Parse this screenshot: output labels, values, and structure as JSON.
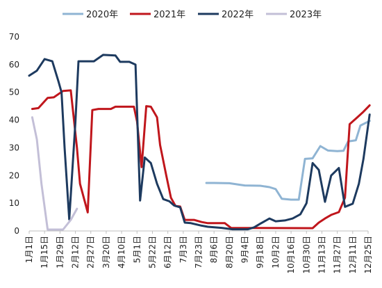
{
  "chart_data": {
    "type": "line",
    "title": "",
    "xlabel": "",
    "ylabel": "",
    "ylim": [
      0,
      70
    ],
    "yticks": [
      0,
      10,
      20,
      30,
      40,
      50,
      60,
      70
    ],
    "grid": false,
    "legend_position": "top",
    "x_tick_labels": [
      "1月1日",
      "1月15日",
      "1月29日",
      "2月12日",
      "2月27日",
      "3月20日",
      "4月10日",
      "5月1日",
      "5月22日",
      "6月12日",
      "7月3日",
      "7月23日",
      "8月6日",
      "8月20日",
      "9月4日",
      "9月18日",
      "10月2日",
      "10月16日",
      "10月30日",
      "11月13日",
      "11月27日",
      "12月11日",
      "12月25日"
    ],
    "series": [
      {
        "name": "2020年",
        "color": "#8fb4d3",
        "points": [
          [
            11.5,
            17.3
          ],
          [
            12,
            17.3
          ],
          [
            13,
            17.2
          ],
          [
            13.6,
            16.7
          ],
          [
            14,
            16.4
          ],
          [
            15,
            16.3
          ],
          [
            15.6,
            15.8
          ],
          [
            16,
            15.1
          ],
          [
            16.4,
            11.6
          ],
          [
            17,
            11.3
          ],
          [
            17.5,
            11.3
          ],
          [
            17.9,
            26
          ],
          [
            18.4,
            26.2
          ],
          [
            18.9,
            30.6
          ],
          [
            19.4,
            29
          ],
          [
            20,
            28.8
          ],
          [
            20.4,
            28.9
          ],
          [
            20.7,
            32.3
          ],
          [
            21.2,
            32.7
          ],
          [
            21.5,
            38
          ],
          [
            22.1,
            39.7
          ]
        ]
      },
      {
        "name": "2021年",
        "color": "#c0161c",
        "points": [
          [
            0.2,
            44
          ],
          [
            0.6,
            44.3
          ],
          [
            1.2,
            48
          ],
          [
            1.6,
            48.2
          ],
          [
            2.2,
            50.5
          ],
          [
            2.7,
            50.7
          ],
          [
            3.1,
            30
          ],
          [
            3.3,
            17
          ],
          [
            3.8,
            6.7
          ],
          [
            4.1,
            43.6
          ],
          [
            4.5,
            44
          ],
          [
            5.3,
            44
          ],
          [
            5.6,
            44.8
          ],
          [
            6.8,
            44.8
          ],
          [
            7,
            39.5
          ],
          [
            7.3,
            23
          ],
          [
            7.6,
            45
          ],
          [
            7.9,
            44.8
          ],
          [
            8.3,
            41
          ],
          [
            8.5,
            31
          ],
          [
            8.9,
            20
          ],
          [
            9.2,
            12
          ],
          [
            9.5,
            9
          ],
          [
            9.8,
            8.8
          ],
          [
            10.1,
            4
          ],
          [
            10.7,
            4
          ],
          [
            11.2,
            3.2
          ],
          [
            11.6,
            2.8
          ],
          [
            12.7,
            2.8
          ],
          [
            13.1,
            1.1
          ],
          [
            18.4,
            1
          ],
          [
            18.8,
            3
          ],
          [
            19.2,
            4.5
          ],
          [
            19.6,
            5.8
          ],
          [
            20.1,
            6.8
          ],
          [
            20.5,
            12
          ],
          [
            20.8,
            38.5
          ],
          [
            21.2,
            40.5
          ],
          [
            21.7,
            43
          ],
          [
            22.1,
            45.3
          ]
        ]
      },
      {
        "name": "2022年",
        "color": "#1d3a5f",
        "points": [
          [
            0,
            56
          ],
          [
            0.5,
            57.8
          ],
          [
            1,
            62
          ],
          [
            1.5,
            61.2
          ],
          [
            1.9,
            54
          ],
          [
            2.1,
            50
          ],
          [
            2.3,
            30
          ],
          [
            2.6,
            4.2
          ],
          [
            3,
            39
          ],
          [
            3.2,
            61.2
          ],
          [
            3.6,
            61.2
          ],
          [
            4.2,
            61.2
          ],
          [
            4.8,
            63.5
          ],
          [
            5.6,
            63.3
          ],
          [
            5.9,
            61
          ],
          [
            6.5,
            61
          ],
          [
            6.9,
            60
          ],
          [
            7.2,
            11
          ],
          [
            7.5,
            26.5
          ],
          [
            7.9,
            24.5
          ],
          [
            8.3,
            17
          ],
          [
            8.7,
            11.5
          ],
          [
            9.1,
            10.7
          ],
          [
            9.4,
            9.2
          ],
          [
            9.8,
            8.5
          ],
          [
            10.1,
            3
          ],
          [
            10.5,
            2.8
          ],
          [
            11.2,
            1.9
          ],
          [
            11.6,
            1.5
          ],
          [
            12.5,
            1.1
          ],
          [
            13.2,
            0.6
          ],
          [
            14.2,
            0.6
          ],
          [
            14.6,
            1.3
          ],
          [
            15,
            2.6
          ],
          [
            15.6,
            4.5
          ],
          [
            16,
            3.5
          ],
          [
            16.6,
            3.8
          ],
          [
            17.1,
            4.5
          ],
          [
            17.6,
            6
          ],
          [
            18,
            10
          ],
          [
            18.4,
            24.5
          ],
          [
            18.8,
            22
          ],
          [
            19.2,
            10.5
          ],
          [
            19.6,
            20
          ],
          [
            20.1,
            22.7
          ],
          [
            20.5,
            8.7
          ],
          [
            21,
            9.8
          ],
          [
            21.4,
            17
          ],
          [
            21.7,
            26
          ],
          [
            22.1,
            42
          ]
        ]
      },
      {
        "name": "2023年",
        "color": "#c3bfd7",
        "points": [
          [
            0.2,
            41
          ],
          [
            0.5,
            33
          ],
          [
            0.8,
            17
          ],
          [
            1.2,
            0.5
          ],
          [
            2.2,
            0.5
          ],
          [
            2.7,
            4
          ],
          [
            3.1,
            8
          ]
        ]
      }
    ]
  }
}
